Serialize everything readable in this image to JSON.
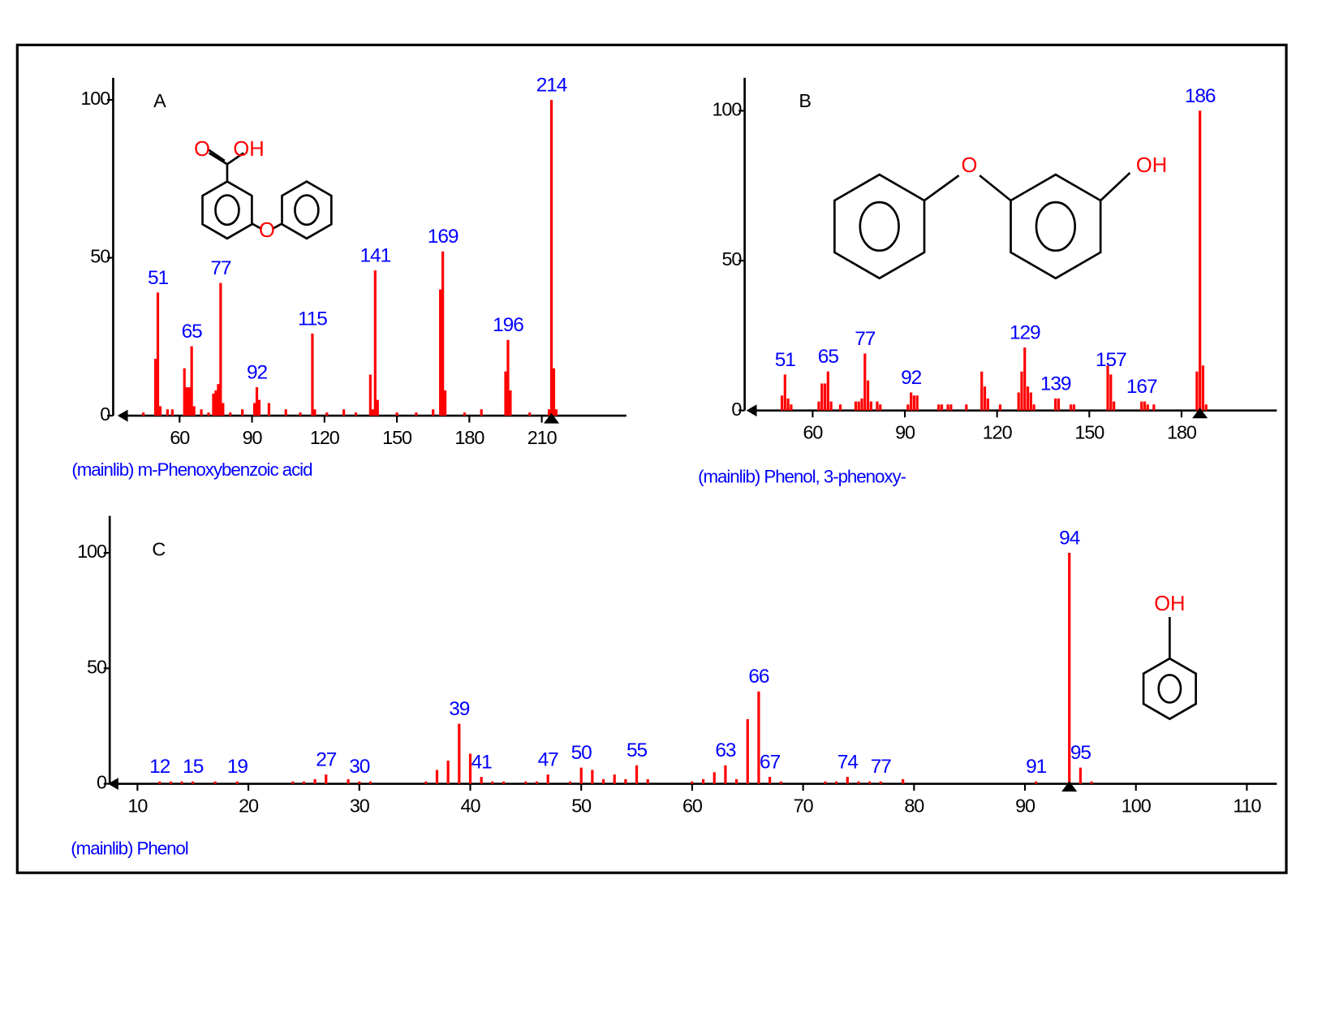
{
  "chart_data": [
    {
      "type": "bar",
      "panel": "A",
      "title": "(mainlib) m-Phenoxybenzoic acid",
      "color": "#ff0000",
      "label_color": "#0000ff",
      "x": [
        45,
        50,
        51,
        52,
        55,
        57,
        62,
        63,
        64,
        65,
        66,
        69,
        72,
        74,
        75,
        76,
        77,
        78,
        81,
        86,
        91,
        92,
        93,
        97,
        104,
        110,
        115,
        116,
        121,
        128,
        133,
        139,
        140,
        141,
        142,
        150,
        158,
        165,
        168,
        169,
        170,
        178,
        185,
        195,
        196,
        197,
        205,
        213,
        214,
        215,
        216
      ],
      "values": [
        1,
        18,
        39,
        3,
        2,
        2,
        15,
        9,
        9,
        22,
        3,
        2,
        1,
        7,
        8,
        10,
        42,
        4,
        1,
        2,
        4,
        9,
        5,
        4,
        2,
        1,
        26,
        2,
        1,
        2,
        1,
        13,
        2,
        46,
        5,
        1,
        1,
        2,
        40,
        52,
        8,
        1,
        2,
        14,
        24,
        8,
        1,
        2,
        100,
        15,
        2
      ],
      "peak_labels": [
        51,
        65,
        77,
        92,
        115,
        141,
        169,
        196,
        214
      ],
      "marker": 214,
      "xlim": [
        35,
        245
      ],
      "ylim": [
        0,
        107
      ],
      "xticks": [
        60,
        90,
        120,
        150,
        180,
        210
      ],
      "yticks": [
        0,
        50,
        100
      ],
      "structure_labels": [
        "O",
        "OH",
        "O"
      ]
    },
    {
      "type": "bar",
      "panel": "B",
      "title": "(mainlib) Phenol, 3-phenoxy-",
      "color": "#ff0000",
      "label_color": "#0000ff",
      "x": [
        50,
        51,
        52,
        53,
        62,
        63,
        64,
        65,
        66,
        69,
        74,
        75,
        76,
        77,
        78,
        79,
        81,
        82,
        91,
        92,
        93,
        94,
        101,
        102,
        104,
        105,
        110,
        115,
        116,
        117,
        121,
        127,
        128,
        129,
        130,
        131,
        132,
        139,
        140,
        144,
        145,
        156,
        157,
        158,
        167,
        168,
        169,
        171,
        185,
        186,
        187,
        188
      ],
      "values": [
        5,
        12,
        4,
        2,
        3,
        9,
        9,
        13,
        3,
        2,
        3,
        3,
        4,
        19,
        10,
        3,
        3,
        2,
        2,
        6,
        5,
        5,
        2,
        2,
        2,
        2,
        2,
        13,
        8,
        4,
        2,
        6,
        13,
        21,
        8,
        6,
        2,
        4,
        4,
        2,
        2,
        15,
        12,
        3,
        3,
        3,
        2,
        2,
        13,
        100,
        15,
        2
      ],
      "peak_labels": [
        51,
        65,
        77,
        92,
        129,
        139,
        157,
        167,
        186
      ],
      "marker": 186,
      "xlim": [
        39,
        211
      ],
      "ylim": [
        0,
        111
      ],
      "xticks": [
        60,
        90,
        120,
        150,
        180
      ],
      "yticks": [
        0,
        50,
        100
      ],
      "structure_labels": [
        "O",
        "OH"
      ]
    },
    {
      "type": "bar",
      "panel": "C",
      "title": "(mainlib) Phenol",
      "color": "#ff0000",
      "label_color": "#0000ff",
      "x": [
        12,
        13,
        14,
        15,
        17,
        19,
        24,
        25,
        26,
        27,
        29,
        30,
        31,
        36,
        37,
        38,
        39,
        40,
        41,
        42,
        43,
        45,
        46,
        47,
        49,
        50,
        51,
        52,
        53,
        54,
        55,
        56,
        60,
        61,
        62,
        63,
        64,
        65,
        66,
        67,
        68,
        72,
        73,
        74,
        75,
        76,
        77,
        79,
        91,
        94,
        95,
        96
      ],
      "values": [
        1,
        1,
        1,
        1,
        1,
        1,
        1,
        1,
        2,
        4,
        2,
        1,
        1,
        1,
        6,
        10,
        26,
        13,
        3,
        1,
        1,
        1,
        1,
        4,
        1,
        7,
        6,
        2,
        4,
        2,
        8,
        2,
        1,
        2,
        5,
        8,
        2,
        28,
        40,
        3,
        1,
        1,
        1,
        3,
        1,
        1,
        1,
        2,
        1,
        100,
        7,
        1
      ],
      "peak_labels": [
        12,
        15,
        19,
        27,
        30,
        39,
        41,
        47,
        50,
        55,
        63,
        66,
        67,
        74,
        77,
        91,
        94,
        95
      ],
      "marker": 94,
      "xlim": [
        7.5,
        112.7
      ],
      "ylim": [
        0,
        116
      ],
      "xticks": [
        10,
        20,
        30,
        40,
        50,
        60,
        70,
        80,
        90,
        100,
        110
      ],
      "yticks": [
        0,
        50,
        100
      ],
      "structure_labels": [
        "OH"
      ]
    }
  ]
}
